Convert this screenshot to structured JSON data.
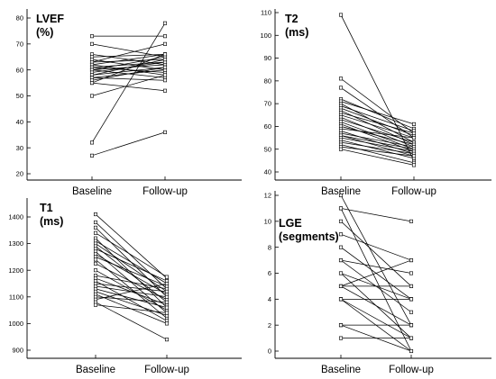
{
  "chart_data": [
    {
      "type": "line",
      "title_lines": [
        "LVEF",
        "(%)"
      ],
      "categories": [
        "Baseline",
        "Follow-up"
      ],
      "ylim": [
        20,
        80
      ],
      "yticks": [
        20,
        30,
        40,
        50,
        60,
        70,
        80
      ],
      "pairs": [
        [
          73,
          73
        ],
        [
          70,
          65
        ],
        [
          66,
          62
        ],
        [
          65,
          66
        ],
        [
          64,
          60
        ],
        [
          63,
          70
        ],
        [
          63,
          64
        ],
        [
          62,
          58
        ],
        [
          62,
          66
        ],
        [
          61,
          63
        ],
        [
          61,
          59
        ],
        [
          60,
          65
        ],
        [
          60,
          62
        ],
        [
          60,
          57
        ],
        [
          59,
          63
        ],
        [
          58,
          61
        ],
        [
          58,
          64
        ],
        [
          57,
          60
        ],
        [
          57,
          56
        ],
        [
          56,
          61
        ],
        [
          55,
          66
        ],
        [
          55,
          52
        ],
        [
          50,
          58
        ],
        [
          32,
          78
        ],
        [
          27,
          36
        ]
      ]
    },
    {
      "type": "line",
      "title_lines": [
        "T2",
        "(ms)"
      ],
      "categories": [
        "Baseline",
        "Follow-up"
      ],
      "ylim": [
        40,
        110
      ],
      "yticks": [
        40,
        50,
        60,
        70,
        80,
        90,
        100,
        110
      ],
      "pairs": [
        [
          109,
          45
        ],
        [
          81,
          57
        ],
        [
          77,
          55
        ],
        [
          72,
          59
        ],
        [
          71,
          61
        ],
        [
          70,
          53
        ],
        [
          69,
          58
        ],
        [
          68,
          56
        ],
        [
          67,
          52
        ],
        [
          66,
          57
        ],
        [
          65,
          55
        ],
        [
          64,
          51
        ],
        [
          63,
          53
        ],
        [
          62,
          50
        ],
        [
          61,
          49
        ],
        [
          60,
          52
        ],
        [
          59,
          55
        ],
        [
          58,
          48
        ],
        [
          57,
          51
        ],
        [
          56,
          50
        ],
        [
          56,
          47
        ],
        [
          55,
          49
        ],
        [
          54,
          46
        ],
        [
          53,
          48
        ],
        [
          52,
          44
        ],
        [
          51,
          47
        ],
        [
          50,
          43
        ]
      ]
    },
    {
      "type": "line",
      "title_lines": [
        "T1",
        "(ms)"
      ],
      "categories": [
        "Baseline",
        "Follow-up"
      ],
      "ylim": [
        900,
        1400
      ],
      "yticks": [
        900,
        1000,
        1100,
        1200,
        1300,
        1400
      ],
      "pairs": [
        [
          1410,
          1170
        ],
        [
          1380,
          1130
        ],
        [
          1360,
          1100
        ],
        [
          1340,
          1175
        ],
        [
          1320,
          1060
        ],
        [
          1310,
          1150
        ],
        [
          1300,
          1120
        ],
        [
          1290,
          1080
        ],
        [
          1280,
          1160
        ],
        [
          1270,
          1040
        ],
        [
          1260,
          1110
        ],
        [
          1250,
          1140
        ],
        [
          1240,
          1020
        ],
        [
          1225,
          1090
        ],
        [
          1200,
          1050
        ],
        [
          1180,
          1130
        ],
        [
          1170,
          1070
        ],
        [
          1160,
          1010
        ],
        [
          1150,
          1120
        ],
        [
          1140,
          1100
        ],
        [
          1130,
          1060
        ],
        [
          1120,
          1030
        ],
        [
          1110,
          1000
        ],
        [
          1100,
          1080
        ],
        [
          1090,
          1150
        ],
        [
          1080,
          940
        ],
        [
          1070,
          1040
        ]
      ]
    },
    {
      "type": "line",
      "title_lines": [
        "LGE",
        "(segments)"
      ],
      "categories": [
        "Baseline",
        "Follow-up"
      ],
      "ylim": [
        0,
        12
      ],
      "yticks": [
        0,
        2,
        4,
        6,
        8,
        10,
        12
      ],
      "pairs": [
        [
          12,
          2
        ],
        [
          11,
          10
        ],
        [
          11,
          0
        ],
        [
          10,
          5
        ],
        [
          9,
          7
        ],
        [
          8,
          4
        ],
        [
          7,
          6
        ],
        [
          7,
          3
        ],
        [
          6,
          1
        ],
        [
          6,
          4
        ],
        [
          5,
          5
        ],
        [
          5,
          2
        ],
        [
          5,
          7
        ],
        [
          4,
          1
        ],
        [
          4,
          4
        ],
        [
          4,
          0
        ],
        [
          2,
          2
        ],
        [
          2,
          0
        ],
        [
          1,
          1
        ]
      ]
    }
  ]
}
